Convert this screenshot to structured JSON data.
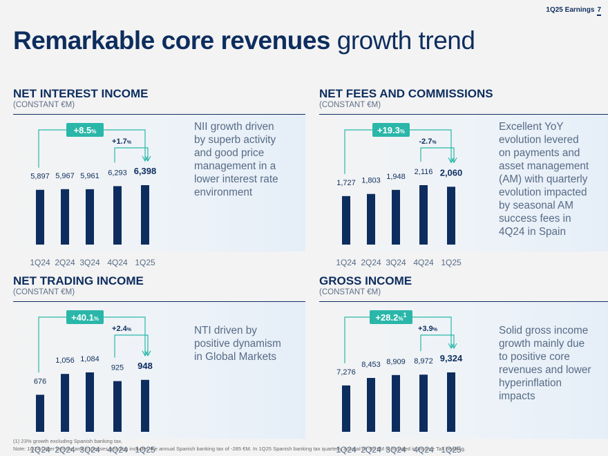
{
  "header": {
    "label": "1Q25 Earnings",
    "page": "7"
  },
  "title": {
    "bold": "Remarkable core revenues",
    "light": "growth trend"
  },
  "colors": {
    "navy": "#0d2d5e",
    "teal": "#2ab7a9",
    "text": "#566b86"
  },
  "panels": [
    {
      "title": "NET INTEREST INCOME",
      "subtitle": "(CONSTANT €M)",
      "desc": [
        "NII growth driven",
        "by superb activity",
        "and good price",
        "management in a",
        "lower interest rate",
        "environment"
      ],
      "badge": {
        "num": "+8.5",
        "unit": "%",
        "sup": ""
      },
      "qoq": {
        "num": "+1.7",
        "unit": "%"
      },
      "chart_data": {
        "type": "bar",
        "title": "NET INTEREST INCOME",
        "categories": [
          "1Q24",
          "2Q24",
          "3Q24",
          "4Q24",
          "1Q25"
        ],
        "values": [
          5897,
          5967,
          5961,
          6293,
          6398
        ],
        "labels": [
          "5,897",
          "5,967",
          "5,961",
          "6,293",
          "6,398"
        ],
        "ylim": [
          0,
          6398
        ],
        "unit": "€M"
      }
    },
    {
      "title": "NET FEES AND COMMISSIONS",
      "subtitle": "(CONSTANT €M)",
      "desc": [
        "Excellent YoY",
        "evolution levered",
        "on payments and",
        "asset management",
        "(AM) with quarterly",
        "evolution impacted",
        "by seasonal AM",
        "success fees in",
        "4Q24 in Spain"
      ],
      "badge": {
        "num": "+19.3",
        "unit": "%",
        "sup": ""
      },
      "qoq": {
        "num": "-2.7",
        "unit": "%"
      },
      "chart_data": {
        "type": "bar",
        "title": "NET FEES AND COMMISSIONS",
        "categories": [
          "1Q24",
          "2Q24",
          "3Q24",
          "4Q24",
          "1Q25"
        ],
        "values": [
          1727,
          1803,
          1948,
          2116,
          2060
        ],
        "labels": [
          "1,727",
          "1,803",
          "1,948",
          "2,116",
          "2,060"
        ],
        "ylim": [
          0,
          2116
        ],
        "unit": "€M"
      }
    },
    {
      "title": "NET TRADING INCOME",
      "subtitle": "(CONSTANT €M)",
      "desc": [
        "NTI driven by",
        "positive dynamism",
        "in Global Markets"
      ],
      "badge": {
        "num": "+40.1",
        "unit": "%",
        "sup": ""
      },
      "qoq": {
        "num": "+2.4",
        "unit": "%"
      },
      "chart_data": {
        "type": "bar",
        "title": "NET TRADING INCOME",
        "categories": [
          "1Q24",
          "2Q24",
          "3Q24",
          "4Q24",
          "1Q25"
        ],
        "values": [
          676,
          1056,
          1084,
          925,
          948
        ],
        "labels": [
          "676",
          "1,056",
          "1,084",
          "925",
          "948"
        ],
        "ylim": [
          0,
          1084
        ],
        "unit": "€M"
      }
    },
    {
      "title": "GROSS INCOME",
      "subtitle": "(CONSTANT €M)",
      "desc": [
        "Solid gross income",
        "growth mainly due",
        "to positive core",
        "revenues and lower",
        "hyperinflation",
        "impacts"
      ],
      "badge": {
        "num": "+28.2",
        "unit": "%",
        "sup": "1"
      },
      "qoq": {
        "num": "+3.9",
        "unit": "%"
      },
      "chart_data": {
        "type": "bar",
        "title": "GROSS INCOME",
        "categories": [
          "1Q24",
          "2Q24",
          "3Q24",
          "4Q24",
          "1Q25"
        ],
        "values": [
          7276,
          8453,
          8909,
          8972,
          9324
        ],
        "labels": [
          "7,276",
          "8,453",
          "8,909",
          "8,972",
          "9,324"
        ],
        "ylim": [
          0,
          9324
        ],
        "unit": "€M"
      }
    }
  ],
  "footnotes": [
    "(1) 23% growth excluding Spanish banking tax.",
    "Note: 1Q24 Other Income and Expenses heading includes the annual Spanish banking tax of -285 €M. In 1Q25 Spanish banking tax quarterly accrual of -85 €M is included in Income Tax heading."
  ]
}
